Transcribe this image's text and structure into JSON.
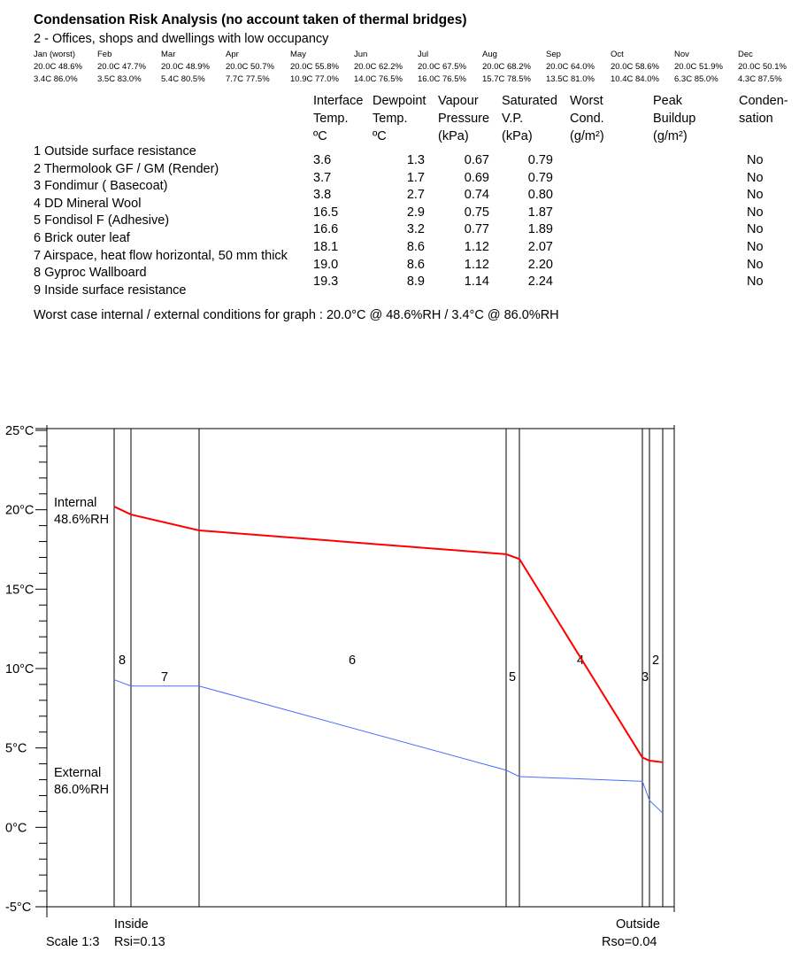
{
  "title": "Condensation Risk Analysis (no account taken of thermal bridges)",
  "subtitle": "2 - Offices, shops and dwellings with low occupancy",
  "months": [
    {
      "name": "Jan (worst)",
      "internal": "20.0C 48.6%",
      "external": "3.4C 86.0%"
    },
    {
      "name": "Feb",
      "internal": "20.0C 47.7%",
      "external": "3.5C 83.0%"
    },
    {
      "name": "Mar",
      "internal": "20.0C 48.9%",
      "external": "5.4C 80.5%"
    },
    {
      "name": "Apr",
      "internal": "20.0C 50.7%",
      "external": "7.7C 77.5%"
    },
    {
      "name": "May",
      "internal": "20.0C 55.8%",
      "external": "10.9C 77.0%"
    },
    {
      "name": "Jun",
      "internal": "20.0C 62.2%",
      "external": "14.0C 76.5%"
    },
    {
      "name": "Jul",
      "internal": "20.0C 67.5%",
      "external": "16.0C 76.5%"
    },
    {
      "name": "Aug",
      "internal": "20.0C 68.2%",
      "external": "15.7C 78.5%"
    },
    {
      "name": "Sep",
      "internal": "20.0C 64.0%",
      "external": "13.5C 81.0%"
    },
    {
      "name": "Oct",
      "internal": "20.0C 58.6%",
      "external": "10.4C 84.0%"
    },
    {
      "name": "Nov",
      "internal": "20.0C 51.9%",
      "external": "6.3C 85.0%"
    },
    {
      "name": "Dec",
      "internal": "20.0C 50.1%",
      "external": "4.3C 87.5%"
    }
  ],
  "table_headers": [
    [
      "Interface",
      "Temp.",
      "ºC"
    ],
    [
      "Dewpoint",
      "Temp.",
      "ºC"
    ],
    [
      "Vapour",
      "Pressure",
      "(kPa)"
    ],
    [
      "Saturated",
      "V.P.",
      "(kPa)"
    ],
    [
      "Worst",
      "Cond.",
      "(g/m²)"
    ],
    [
      "Peak",
      "Buildup",
      "(g/m²)"
    ],
    [
      "Conden-",
      "sation",
      ""
    ]
  ],
  "layers": [
    "1 Outside surface resistance",
    "2 Thermolook GF / GM (Render)",
    "3 Fondimur ( Basecoat)",
    "4 DD Mineral Wool",
    "5 Fondisol F (Adhesive)",
    "6 Brick outer leaf",
    "7 Airspace, heat flow horizontal, 50 mm thick",
    "8 Gyproc Wallboard",
    "9 Inside surface resistance"
  ],
  "rows": [
    {
      "temp": "3.6",
      "dew": "1.3",
      "vp": "0.67",
      "svp": "0.79",
      "worst": "",
      "peak": "",
      "cond": "No"
    },
    {
      "temp": "3.7",
      "dew": "1.7",
      "vp": "0.69",
      "svp": "0.79",
      "worst": "",
      "peak": "",
      "cond": "No"
    },
    {
      "temp": "3.8",
      "dew": "2.7",
      "vp": "0.74",
      "svp": "0.80",
      "worst": "",
      "peak": "",
      "cond": "No"
    },
    {
      "temp": "16.5",
      "dew": "2.9",
      "vp": "0.75",
      "svp": "1.87",
      "worst": "",
      "peak": "",
      "cond": "No"
    },
    {
      "temp": "16.6",
      "dew": "3.2",
      "vp": "0.77",
      "svp": "1.89",
      "worst": "",
      "peak": "",
      "cond": "No"
    },
    {
      "temp": "18.1",
      "dew": "8.6",
      "vp": "1.12",
      "svp": "2.07",
      "worst": "",
      "peak": "",
      "cond": "No"
    },
    {
      "temp": "19.0",
      "dew": "8.6",
      "vp": "1.12",
      "svp": "2.20",
      "worst": "",
      "peak": "",
      "cond": "No"
    },
    {
      "temp": "19.3",
      "dew": "8.9",
      "vp": "1.14",
      "svp": "2.24",
      "worst": "",
      "peak": "",
      "cond": "No"
    }
  ],
  "worst_case": "Worst case internal / external conditions for graph : 20.0°C @ 48.6%RH / 3.4°C @ 86.0%RH",
  "graph": {
    "y_ticks": [
      "25°C",
      "20°C",
      "15°C",
      "10°C",
      "5°C",
      "0°C",
      "-5°C"
    ],
    "internal_label": [
      "Internal",
      "48.6%RH"
    ],
    "external_label": [
      "External",
      "86.0%RH"
    ],
    "inside_label": "Inside",
    "outside_label": "Outside",
    "scale_label": "Scale 1:3",
    "rsi_label": "Rsi=0.13",
    "rso_label": "Rso=0.04",
    "layer_numbers": [
      "8",
      "7",
      "6",
      "5",
      "4",
      "3",
      "2"
    ],
    "colors": {
      "temperature": "#ff0000",
      "dewpoint": "#4a6cff"
    }
  }
}
